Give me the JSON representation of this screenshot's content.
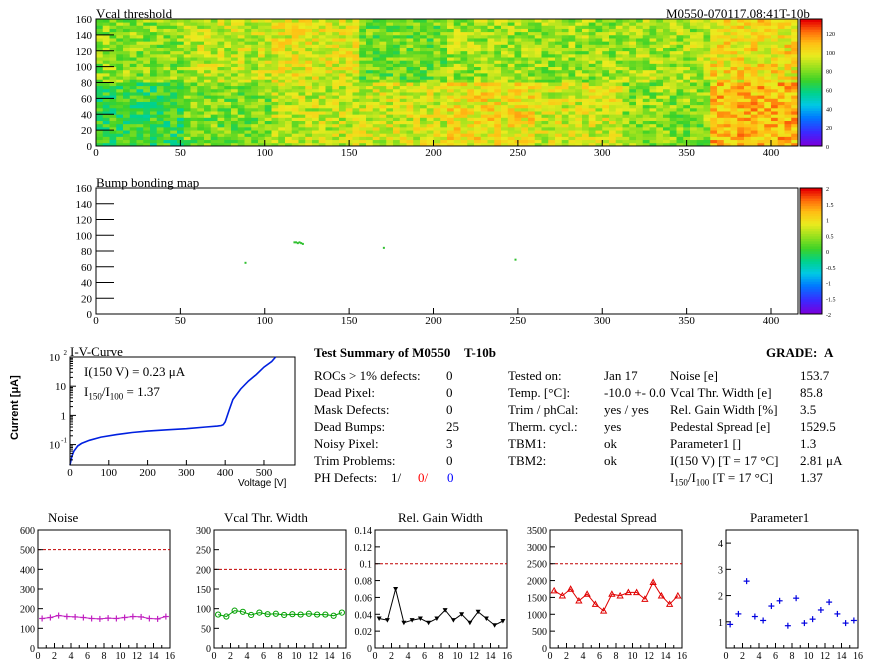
{
  "header": {
    "title": "Vcal threshold",
    "module_id": "M0550-070117.08:41T-10b",
    "bump_title": "Bump bonding map"
  },
  "colors": {
    "noise": "#c020c0",
    "vcal": "#00a000",
    "gain": "#000000",
    "pedestal": "#e00000",
    "param1": "#0000e0",
    "ref_line": "#c00000",
    "iv": "#0020e0",
    "ph_red": "#ff0000",
    "ph_blue": "#0000ff"
  },
  "chart_data": [
    {
      "type": "heatmap",
      "title": "Vcal threshold",
      "xlim": [
        0,
        416
      ],
      "ylim": [
        0,
        160
      ],
      "x_ticks": [
        "0",
        "50",
        "100",
        "150",
        "200",
        "250",
        "300",
        "350",
        "400"
      ],
      "y_ticks": [
        "0",
        "20",
        "40",
        "60",
        "80",
        "100",
        "120",
        "140",
        "160"
      ],
      "z_range": [
        0,
        135
      ],
      "z_ticks": [
        "0",
        "20",
        "40",
        "60",
        "80",
        "100",
        "120"
      ],
      "roc_grid": {
        "columns": 8,
        "rows": 2
      },
      "roc_means": [
        [
          82,
          90,
          96,
          78,
          85,
          84,
          86,
          101
        ],
        [
          68,
          79,
          90,
          93,
          100,
          93,
          82,
          110
        ]
      ]
    },
    {
      "type": "heatmap",
      "title": "Bump bonding map",
      "xlim": [
        0,
        416
      ],
      "ylim": [
        0,
        160
      ],
      "x_ticks": [
        "0",
        "50",
        "100",
        "150",
        "200",
        "250",
        "300",
        "350",
        "400"
      ],
      "y_ticks": [
        "0",
        "20",
        "40",
        "60",
        "80",
        "100",
        "120",
        "140",
        "160"
      ],
      "z_range": [
        -2,
        2
      ],
      "z_ticks": [
        "-2",
        "-1.5",
        "-1",
        "-0.5",
        "0",
        "0.5",
        "1",
        "1.5",
        "2"
      ],
      "points": [
        {
          "x": 88,
          "y": 65
        },
        {
          "x": 117,
          "y": 91
        },
        {
          "x": 118,
          "y": 91
        },
        {
          "x": 119,
          "y": 90
        },
        {
          "x": 120,
          "y": 91
        },
        {
          "x": 121,
          "y": 90
        },
        {
          "x": 122,
          "y": 89
        },
        {
          "x": 170,
          "y": 84
        },
        {
          "x": 248,
          "y": 69
        }
      ]
    },
    {
      "type": "line",
      "title": "I-V-Curve",
      "xlabel": "Voltage [V]",
      "ylabel": "Current [μA]",
      "yscale": "log",
      "xlim": [
        0,
        580
      ],
      "ylim": [
        0.02,
        100
      ],
      "x_ticks": [
        "0",
        "100",
        "200",
        "300",
        "400",
        "500"
      ],
      "y_ticks": [
        "10^-1",
        "1",
        "10",
        "10^2"
      ],
      "x": [
        0,
        5,
        10,
        20,
        30,
        50,
        80,
        120,
        160,
        200,
        250,
        300,
        350,
        380,
        390,
        395,
        400,
        410,
        420,
        440,
        460,
        480,
        500,
        520,
        530
      ],
      "y": [
        0.02,
        0.04,
        0.06,
        0.09,
        0.11,
        0.14,
        0.18,
        0.22,
        0.26,
        0.29,
        0.32,
        0.35,
        0.4,
        0.43,
        0.45,
        0.48,
        0.6,
        1.5,
        3.5,
        8,
        15,
        25,
        45,
        70,
        100
      ],
      "annotation_i150": "I(150 V) = 0.23 μA",
      "annotation_ratio_label": "I",
      "annotation_ratio_sub1": "150",
      "annotation_ratio_mid": "/I",
      "annotation_ratio_sub2": "100",
      "annotation_ratio_value": " =  1.37"
    },
    {
      "type": "line",
      "title": "Noise",
      "xlim": [
        0,
        16
      ],
      "ylim": [
        0,
        600
      ],
      "x_ticks": [
        "0",
        "2",
        "4",
        "6",
        "8",
        "10",
        "12",
        "14",
        "16"
      ],
      "y_ticks": [
        "0",
        "100",
        "200",
        "300",
        "400",
        "500",
        "600"
      ],
      "reference": 500,
      "x": [
        0,
        1,
        2,
        3,
        4,
        5,
        6,
        7,
        8,
        9,
        10,
        11,
        12,
        13,
        14,
        15
      ],
      "y": [
        150,
        155,
        165,
        160,
        158,
        155,
        150,
        148,
        152,
        150,
        155,
        160,
        158,
        150,
        148,
        160
      ]
    },
    {
      "type": "line",
      "title": "Vcal Thr. Width",
      "xlim": [
        0,
        16
      ],
      "ylim": [
        0,
        300
      ],
      "x_ticks": [
        "0",
        "2",
        "4",
        "6",
        "8",
        "10",
        "12",
        "14",
        "16"
      ],
      "y_ticks": [
        "0",
        "50",
        "100",
        "150",
        "200",
        "250",
        "300"
      ],
      "reference": 200,
      "x": [
        0,
        1,
        2,
        3,
        4,
        5,
        6,
        7,
        8,
        9,
        10,
        11,
        12,
        13,
        14,
        15
      ],
      "y": [
        85,
        80,
        95,
        92,
        84,
        90,
        86,
        87,
        84,
        86,
        85,
        87,
        85,
        85,
        82,
        90
      ]
    },
    {
      "type": "line",
      "title": "Rel. Gain Width",
      "xlim": [
        0,
        16
      ],
      "ylim": [
        0,
        0.14
      ],
      "x_ticks": [
        "0",
        "2",
        "4",
        "6",
        "8",
        "10",
        "12",
        "14",
        "16"
      ],
      "y_ticks": [
        "0",
        "0.02",
        "0.04",
        "0.06",
        "0.08",
        "0.1",
        "0.12",
        "0.14"
      ],
      "reference": 0.1,
      "x": [
        0,
        1,
        2,
        3,
        4,
        5,
        6,
        7,
        8,
        9,
        10,
        11,
        12,
        13,
        14,
        15
      ],
      "y": [
        0.035,
        0.033,
        0.07,
        0.03,
        0.033,
        0.035,
        0.03,
        0.035,
        0.045,
        0.033,
        0.04,
        0.03,
        0.043,
        0.035,
        0.027,
        0.032
      ]
    },
    {
      "type": "line",
      "title": "Pedestal Spread",
      "xlim": [
        0,
        16
      ],
      "ylim": [
        0,
        3500
      ],
      "x_ticks": [
        "0",
        "2",
        "4",
        "6",
        "8",
        "10",
        "12",
        "14",
        "16"
      ],
      "y_ticks": [
        "0",
        "500",
        "1000",
        "1500",
        "2000",
        "2500",
        "3000",
        "3500"
      ],
      "reference": 2500,
      "x": [
        0,
        1,
        2,
        3,
        4,
        5,
        6,
        7,
        8,
        9,
        10,
        11,
        12,
        13,
        14,
        15
      ],
      "y": [
        1700,
        1550,
        1750,
        1400,
        1600,
        1300,
        1100,
        1600,
        1550,
        1650,
        1650,
        1450,
        1950,
        1550,
        1300,
        1550
      ]
    },
    {
      "type": "scatter",
      "title": "Parameter1",
      "xlim": [
        0,
        16
      ],
      "ylim": [
        0,
        4.5
      ],
      "x_ticks": [
        "0",
        "2",
        "4",
        "6",
        "8",
        "10",
        "12",
        "14",
        "16"
      ],
      "y_ticks": [
        "1",
        "2",
        "3",
        "4"
      ],
      "x": [
        0,
        1,
        2,
        3,
        4,
        5,
        6,
        7,
        8,
        9,
        10,
        11,
        12,
        13,
        14,
        15
      ],
      "y": [
        0.9,
        1.3,
        2.55,
        1.2,
        1.05,
        1.6,
        1.8,
        0.85,
        1.9,
        0.95,
        1.1,
        1.45,
        1.75,
        1.3,
        0.95,
        1.05
      ]
    }
  ],
  "summary": {
    "title": "Test Summary of M0550",
    "subtitle": "T-10b",
    "grade_label": "GRADE:",
    "grade": "A",
    "left_rows": [
      {
        "label": "ROCs > 1% defects:",
        "value": "0"
      },
      {
        "label": "Dead Pixel:",
        "value": "0"
      },
      {
        "label": "Mask Defects:",
        "value": "0"
      },
      {
        "label": "Dead Bumps:",
        "value": "25"
      },
      {
        "label": "Noisy Pixel:",
        "value": "3"
      },
      {
        "label": "Trim Problems:",
        "value": "0"
      }
    ],
    "ph_label": "PH Defects:",
    "ph_values": [
      "1/",
      "0/",
      "0"
    ],
    "mid_rows": [
      {
        "label": "Tested on:",
        "value": "Jan 17"
      },
      {
        "label": "Temp. [°C]:",
        "value": "-10.0 +- 0.0"
      },
      {
        "label": "Trim / phCal:",
        "value": "yes / yes"
      },
      {
        "label": "Therm. cycl.:",
        "value": "yes"
      },
      {
        "label": "TBM1:",
        "value": "ok"
      },
      {
        "label": "TBM2:",
        "value": "ok"
      }
    ],
    "right_rows": [
      {
        "label": "Noise [e]",
        "value": "153.7"
      },
      {
        "label": "Vcal Thr. Width [e]",
        "value": "85.8"
      },
      {
        "label": "Rel. Gain Width [%]",
        "value": "3.5"
      },
      {
        "label": "Pedestal Spread [e]",
        "value": "1529.5"
      },
      {
        "label": "Parameter1 []",
        "value": "1.3"
      },
      {
        "label": "I(150 V)  [T = 17 °C]",
        "value": "2.81 μA"
      }
    ],
    "ratio_label_main": "I",
    "ratio_sub1": "150",
    "ratio_mid": "/I",
    "ratio_sub2": "100",
    "ratio_rest": "  [T = 17 °C]",
    "ratio_value": "1.37"
  }
}
